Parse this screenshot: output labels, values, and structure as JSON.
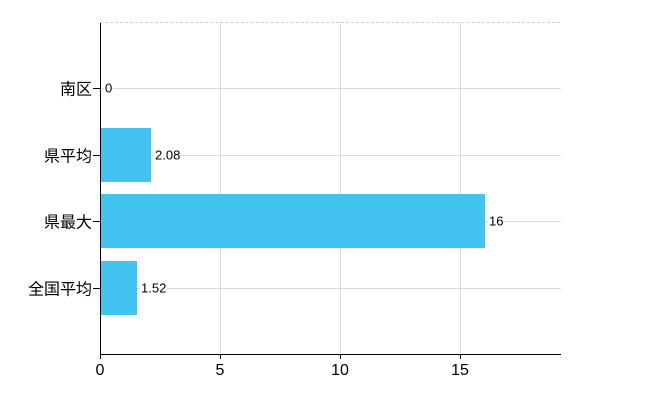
{
  "chart_data": {
    "type": "bar",
    "orientation": "horizontal",
    "title": "",
    "xlabel": "",
    "ylabel": "",
    "categories": [
      "南区",
      "県平均",
      "県最大",
      "全国平均"
    ],
    "values": [
      0,
      2.08,
      16,
      1.52
    ],
    "value_labels": [
      "0",
      "2.08",
      "16",
      "1.52"
    ],
    "x_ticks": [
      0,
      5,
      10,
      15
    ],
    "x_tick_labels": [
      "0",
      "5",
      "10",
      "15"
    ],
    "xlim": [
      0,
      19.17
    ],
    "grid": true,
    "legend": false,
    "colors": {
      "bar": "#42C3F0",
      "h_gridline": "#d6dcd6",
      "v_gridline": "#dcdcdc",
      "top_border": "#cfcdd8",
      "axis": "#000000",
      "text": "#000000",
      "background": "#ffffff"
    }
  }
}
